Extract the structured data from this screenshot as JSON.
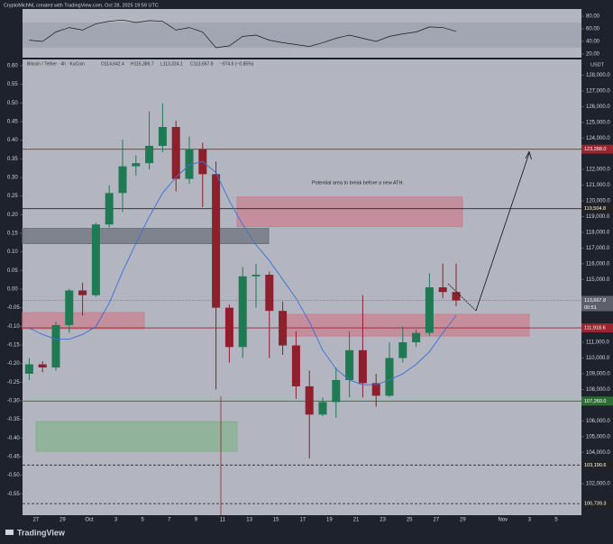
{
  "chart_data": {
    "type": "candlestick",
    "header": {
      "credit": "CryptoMichNL created with TradingView.com, Oct 28, 2025 19:59 UTC",
      "symbol": "Bitcoin / Tether · 4h · KuCoin",
      "ohlc": [
        "O114,642.4",
        "H115,389.7",
        "L113,324.1",
        "C113,667.8",
        "−974.6 (−0.85%)"
      ],
      "currency": "USDT",
      "brand": "TradingView"
    },
    "annotation": "Potential area to break before a new ATH.",
    "x_labels": [
      "27",
      "29",
      "Oct",
      "3",
      "5",
      "7",
      "9",
      "11",
      "13",
      "15",
      "17",
      "19",
      "21",
      "23",
      "25",
      "27",
      "29",
      "Nov",
      "3",
      "5"
    ],
    "open": [
      109000,
      109600,
      109400,
      112100,
      114300,
      114000,
      118500,
      120500,
      122200,
      122400,
      123500,
      124700,
      121400,
      123300,
      121700,
      113200,
      110700,
      115200,
      115300,
      113000,
      110800,
      108200,
      106400,
      107200,
      108600,
      110500,
      108400,
      107600,
      110000,
      111000,
      111600,
      114500,
      114200
    ],
    "high": [
      110000,
      109800,
      112300,
      114400,
      114800,
      118600,
      121000,
      123900,
      122900,
      125700,
      126200,
      125100,
      124100,
      123700,
      122500,
      113400,
      115800,
      116000,
      115500,
      113600,
      111700,
      109200,
      107500,
      109400,
      111700,
      114000,
      109000,
      111000,
      112000,
      111800,
      115400,
      116000,
      116000
    ],
    "low": [
      108600,
      109100,
      109200,
      111600,
      112700,
      113900,
      118300,
      119300,
      121600,
      122000,
      123100,
      120600,
      121100,
      119600,
      108000,
      109700,
      110000,
      113200,
      110000,
      110200,
      107400,
      103600,
      106300,
      106200,
      107500,
      107500,
      106900,
      107500,
      109700,
      110700,
      111400,
      113800,
      113300
    ],
    "close": [
      109600,
      109400,
      112100,
      114300,
      114000,
      118500,
      120500,
      122200,
      122400,
      123500,
      124700,
      121400,
      123300,
      121700,
      113200,
      110700,
      115200,
      115300,
      113000,
      110800,
      108200,
      106400,
      107200,
      108600,
      110500,
      108400,
      107600,
      110000,
      111000,
      111600,
      114500,
      114200,
      113667.8
    ],
    "up_color": "#1f7a54",
    "down_color": "#8e1f2c",
    "ma": {
      "color": "#3b6fd4",
      "values": [
        111900,
        111500,
        111200,
        111200,
        111500,
        112000,
        113500,
        115500,
        117300,
        119000,
        120500,
        121500,
        122300,
        122500,
        121800,
        120000,
        118500,
        117200,
        116200,
        115000,
        113800,
        112300,
        110500,
        109300,
        108600,
        108300,
        108300,
        108600,
        109000,
        109600,
        110400,
        111600,
        112700
      ]
    },
    "ylim": [
      100000,
      129000
    ],
    "yticks": [
      {
        "value": 128000,
        "label": "128,000.0"
      },
      {
        "value": 127000,
        "label": "127,000.0"
      },
      {
        "value": 126000,
        "label": "126,000.0"
      },
      {
        "value": 125000,
        "label": "125,000.0"
      },
      {
        "value": 124000,
        "label": "124,000.0"
      },
      {
        "value": 122000,
        "label": "122,000.0"
      },
      {
        "value": 121000,
        "label": "121,000.0"
      },
      {
        "value": 120000,
        "label": "120,000.0"
      },
      {
        "value": 119000,
        "label": "119,000.0"
      },
      {
        "value": 118000,
        "label": "118,000.0"
      },
      {
        "value": 117000,
        "label": "117,000.0"
      },
      {
        "value": 116000,
        "label": "116,000.0"
      },
      {
        "value": 115000,
        "label": "115,000.0"
      },
      {
        "value": 111000,
        "label": "111,000.0"
      },
      {
        "value": 110000,
        "label": "110,000.0"
      },
      {
        "value": 109000,
        "label": "109,000.0"
      },
      {
        "value": 108000,
        "label": "108,000.0"
      },
      {
        "value": 106000,
        "label": "106,000.0"
      },
      {
        "value": 105000,
        "label": "105,000.0"
      },
      {
        "value": 104000,
        "label": "104,000.0"
      },
      {
        "value": 102000,
        "label": "102,000.0"
      }
    ],
    "price_lines": [
      {
        "value": 123288,
        "label": "123,288.0",
        "color": "#9b2430"
      },
      {
        "value": 119504.8,
        "label": "119,504.8",
        "color": "#222222"
      },
      {
        "value": 111918.6,
        "label": "111,918.6",
        "color": "#9b2430"
      },
      {
        "value": 107260,
        "label": "107,260.0",
        "color": "#2e6b36"
      },
      {
        "value": 103190.6,
        "label": "103,190.6",
        "color": "#222222"
      },
      {
        "value": 100739.3,
        "label": "100,739.3",
        "color": "#222222"
      }
    ],
    "current": {
      "value": 113667.8,
      "label": "113,667.8",
      "countdown": "00:51"
    },
    "zones": [
      {
        "from": 118360,
        "to": 120250,
        "color": "#c9808f"
      },
      {
        "from": 117280,
        "to": 118250,
        "color": "#6d717b"
      },
      {
        "from": 111860,
        "to": 112890,
        "color": "#c9808f"
      },
      {
        "from": 111400,
        "to": 112780,
        "color": "#c9808f"
      },
      {
        "from": 104060,
        "to": 105950,
        "color": "#86b08e"
      }
    ],
    "y2lim": [
      -0.6,
      0.6
    ],
    "y2ticks": [
      {
        "value": 0.6,
        "label": "0.60"
      },
      {
        "value": 0.55,
        "label": "0.55"
      },
      {
        "value": 0.5,
        "label": "0.50"
      },
      {
        "value": 0.45,
        "label": "0.45"
      },
      {
        "value": 0.4,
        "label": "0.40"
      },
      {
        "value": 0.35,
        "label": "0.35"
      },
      {
        "value": 0.3,
        "label": "0.30"
      },
      {
        "value": 0.25,
        "label": "0.25"
      },
      {
        "value": 0.2,
        "label": "0.20"
      },
      {
        "value": 0.15,
        "label": "0.15"
      },
      {
        "value": 0.1,
        "label": "0.10"
      },
      {
        "value": 0.05,
        "label": "0.05"
      },
      {
        "value": 0,
        "label": "0.00"
      },
      {
        "value": -0.05,
        "label": "-0.05"
      },
      {
        "value": -0.1,
        "label": "-0.10"
      },
      {
        "value": -0.15,
        "label": "-0.15"
      },
      {
        "value": -0.2,
        "label": "-0.20"
      },
      {
        "value": -0.25,
        "label": "-0.25"
      },
      {
        "value": -0.3,
        "label": "-0.30"
      },
      {
        "value": -0.35,
        "label": "-0.35"
      },
      {
        "value": -0.4,
        "label": "-0.40"
      },
      {
        "value": -0.45,
        "label": "-0.45"
      },
      {
        "value": -0.5,
        "label": "-0.50"
      },
      {
        "value": -0.55,
        "label": "-0.55"
      }
    ],
    "rsi": {
      "color": "#1a1a1a",
      "values": [
        42,
        40,
        55,
        62,
        58,
        68,
        72,
        74,
        70,
        73,
        72,
        58,
        62,
        55,
        30,
        33,
        48,
        50,
        42,
        38,
        35,
        32,
        38,
        45,
        50,
        45,
        40,
        48,
        52,
        55,
        63,
        62,
        56
      ],
      "ylim": [
        20,
        80
      ],
      "yticks": [
        {
          "value": 80,
          "label": "80.00"
        },
        {
          "value": 60,
          "label": "60.00"
        },
        {
          "value": 40,
          "label": "40.00"
        },
        {
          "value": 20,
          "label": "20.00"
        }
      ]
    }
  }
}
